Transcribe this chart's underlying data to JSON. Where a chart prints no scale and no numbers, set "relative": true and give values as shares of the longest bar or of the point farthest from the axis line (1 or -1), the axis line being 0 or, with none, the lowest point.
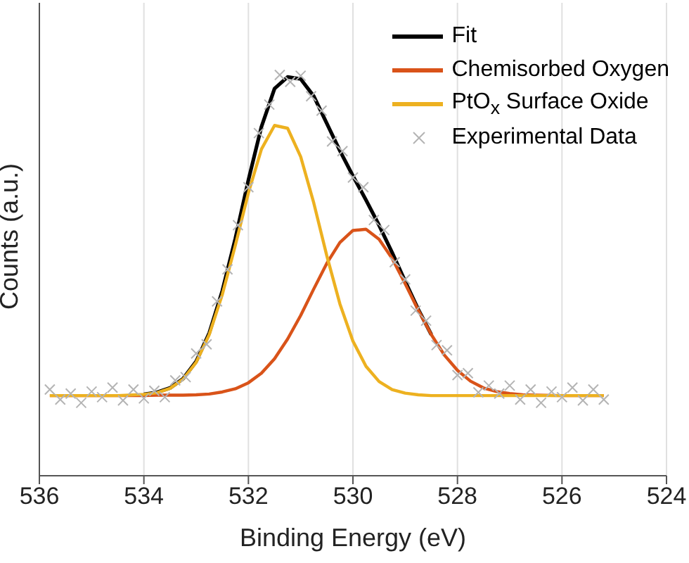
{
  "chart_data": {
    "type": "line",
    "relative": true,
    "xlabel": "Binding Energy (eV)",
    "ylabel": "Counts (a.u.)",
    "xlim": [
      536,
      524
    ],
    "xticks": [
      536,
      534,
      532,
      530,
      528,
      526,
      524
    ],
    "grid": "x",
    "legend": "top right",
    "series": [
      {
        "name": "Fit",
        "marker": "none",
        "color": "#000000",
        "x": [
          534,
          533.75,
          533.5,
          533.25,
          533,
          532.75,
          532.5,
          532.25,
          532,
          531.75,
          531.5,
          531.25,
          531,
          530.75,
          530.5,
          530.25,
          530,
          529.75,
          529.5,
          529.25,
          529,
          528.75,
          528.5
        ],
        "values": [
          0.203,
          0.208,
          0.219,
          0.242,
          0.285,
          0.356,
          0.461,
          0.592,
          0.738,
          0.871,
          0.966,
          0.995,
          0.99,
          0.947,
          0.879,
          0.811,
          0.748,
          0.688,
          0.625,
          0.557,
          0.485,
          0.415,
          0.352
        ]
      },
      {
        "name": "Chemisorbed Oxygen",
        "marker": "none",
        "color": "#d95319",
        "x": [
          535.8,
          535,
          534.5,
          534,
          533.75,
          533.5,
          533.25,
          533,
          532.75,
          532.5,
          532.25,
          532,
          531.75,
          531.5,
          531.25,
          531,
          530.75,
          530.5,
          530.25,
          530,
          529.75,
          529.5,
          529.25,
          529,
          528.75,
          528.5,
          528.25,
          528,
          527.75,
          527.5,
          527.25,
          527,
          526.75,
          526.5,
          526,
          525.2
        ],
        "values": [
          0.2,
          0.2,
          0.2,
          0.2,
          0.201,
          0.201,
          0.201,
          0.202,
          0.204,
          0.209,
          0.217,
          0.232,
          0.256,
          0.292,
          0.341,
          0.4,
          0.466,
          0.53,
          0.582,
          0.612,
          0.615,
          0.59,
          0.542,
          0.479,
          0.413,
          0.352,
          0.301,
          0.263,
          0.236,
          0.219,
          0.21,
          0.205,
          0.202,
          0.201,
          0.2,
          0.2
        ]
      },
      {
        "name": "PtO$_{x}$ Surface Oxide",
        "marker": "none",
        "color": "#edb120",
        "x": [
          535.8,
          535,
          534.5,
          534,
          533.75,
          533.5,
          533.25,
          533,
          532.75,
          532.5,
          532.25,
          532,
          531.75,
          531.5,
          531.25,
          531,
          530.75,
          530.5,
          530.25,
          530,
          529.75,
          529.5,
          529.25,
          529,
          528.75,
          528.5,
          528.25,
          528,
          527.75,
          527.5,
          527.25,
          527,
          526.75,
          526.5,
          526,
          525.2
        ],
        "values": [
          0.2,
          0.2,
          0.2,
          0.203,
          0.207,
          0.218,
          0.241,
          0.283,
          0.352,
          0.452,
          0.575,
          0.706,
          0.815,
          0.874,
          0.867,
          0.796,
          0.681,
          0.549,
          0.429,
          0.336,
          0.273,
          0.235,
          0.215,
          0.206,
          0.202,
          0.2,
          0.2,
          0.2,
          0.2,
          0.2,
          0.2,
          0.2,
          0.2,
          0.2,
          0.2,
          0.2
        ]
      },
      {
        "name": "Experimental Data",
        "type": "scatter",
        "marker": "cross",
        "color": "#b4b4b4",
        "x": [
          535.8,
          535.6,
          535.4,
          535.2,
          535.0,
          534.8,
          534.6,
          534.4,
          534.2,
          534.0,
          533.8,
          533.6,
          533.4,
          533.2,
          533.0,
          532.8,
          532.6,
          532.4,
          532.2,
          532.0,
          531.8,
          531.6,
          531.4,
          531.2,
          531.0,
          530.8,
          530.6,
          530.4,
          530.2,
          530.0,
          529.8,
          529.6,
          529.4,
          529.2,
          529.0,
          528.8,
          528.6,
          528.4,
          528.2,
          528.0,
          527.8,
          527.6,
          527.4,
          527.2,
          527.0,
          526.8,
          526.6,
          526.4,
          526.2,
          526.0,
          525.8,
          525.6,
          525.4,
          525.2
        ],
        "values": [
          0.215,
          0.19,
          0.205,
          0.182,
          0.21,
          0.196,
          0.22,
          0.188,
          0.215,
          0.193,
          0.212,
          0.196,
          0.238,
          0.246,
          0.305,
          0.328,
          0.435,
          0.515,
          0.625,
          0.72,
          0.855,
          0.926,
          1.0,
          0.983,
          0.998,
          0.947,
          0.911,
          0.834,
          0.81,
          0.744,
          0.72,
          0.638,
          0.613,
          0.533,
          0.49,
          0.412,
          0.387,
          0.326,
          0.313,
          0.251,
          0.256,
          0.208,
          0.225,
          0.205,
          0.225,
          0.19,
          0.215,
          0.182,
          0.21,
          0.196,
          0.22,
          0.188,
          0.215,
          0.19
        ]
      }
    ]
  }
}
